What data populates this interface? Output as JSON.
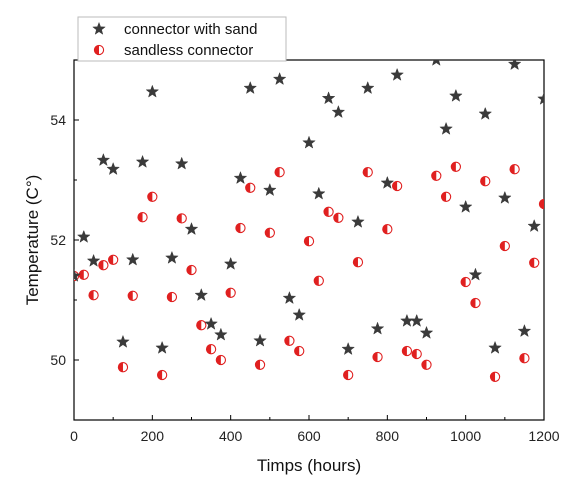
{
  "chart_data": {
    "type": "scatter",
    "title": "",
    "xlabel": "Timps (hours)",
    "ylabel": "Temperature (C°)",
    "xlim": [
      0,
      1200
    ],
    "ylim": [
      49,
      55
    ],
    "xticks": [
      "0",
      "200",
      "400",
      "600",
      "800",
      "1000",
      "1200"
    ],
    "yticks": [
      "50",
      "52",
      "54"
    ],
    "grid": false,
    "legend": "top-left, outside plot",
    "series": [
      {
        "name": "connector with sand",
        "marker": "star",
        "color": "#3a3a3a",
        "points": [
          [
            0,
            51.4
          ],
          [
            25,
            52.05
          ],
          [
            50,
            51.65
          ],
          [
            75,
            53.33
          ],
          [
            100,
            53.18
          ],
          [
            125,
            50.3
          ],
          [
            150,
            51.67
          ],
          [
            175,
            53.3
          ],
          [
            200,
            54.47
          ],
          [
            225,
            50.2
          ],
          [
            250,
            51.7
          ],
          [
            275,
            53.27
          ],
          [
            300,
            52.18
          ],
          [
            325,
            51.08
          ],
          [
            350,
            50.6
          ],
          [
            375,
            50.42
          ],
          [
            400,
            51.6
          ],
          [
            425,
            53.03
          ],
          [
            450,
            54.53
          ],
          [
            475,
            50.32
          ],
          [
            500,
            52.83
          ],
          [
            525,
            54.68
          ],
          [
            550,
            51.03
          ],
          [
            575,
            50.75
          ],
          [
            600,
            53.62
          ],
          [
            625,
            52.77
          ],
          [
            650,
            54.36
          ],
          [
            675,
            54.13
          ],
          [
            700,
            50.18
          ],
          [
            725,
            52.3
          ],
          [
            750,
            54.53
          ],
          [
            775,
            50.52
          ],
          [
            800,
            52.95
          ],
          [
            825,
            54.75
          ],
          [
            850,
            50.65
          ],
          [
            875,
            50.65
          ],
          [
            900,
            50.45
          ],
          [
            925,
            55.0
          ],
          [
            950,
            53.85
          ],
          [
            975,
            54.4
          ],
          [
            1000,
            52.55
          ],
          [
            1025,
            51.42
          ],
          [
            1050,
            54.1
          ],
          [
            1075,
            50.2
          ],
          [
            1100,
            52.7
          ],
          [
            1125,
            54.93
          ],
          [
            1150,
            50.48
          ],
          [
            1175,
            52.23
          ],
          [
            1200,
            54.35
          ]
        ]
      },
      {
        "name": "sandless connector",
        "marker": "half-filled circle",
        "color": "#e02020",
        "points": [
          [
            0,
            51.4
          ],
          [
            25,
            51.42
          ],
          [
            50,
            51.08
          ],
          [
            75,
            51.58
          ],
          [
            100,
            51.67
          ],
          [
            125,
            49.88
          ],
          [
            150,
            51.07
          ],
          [
            175,
            52.38
          ],
          [
            200,
            52.72
          ],
          [
            225,
            49.75
          ],
          [
            250,
            51.05
          ],
          [
            275,
            52.36
          ],
          [
            300,
            51.5
          ],
          [
            325,
            50.58
          ],
          [
            350,
            50.18
          ],
          [
            375,
            50.0
          ],
          [
            400,
            51.12
          ],
          [
            425,
            52.2
          ],
          [
            450,
            52.87
          ],
          [
            475,
            49.92
          ],
          [
            500,
            52.12
          ],
          [
            525,
            53.13
          ],
          [
            550,
            50.32
          ],
          [
            575,
            50.15
          ],
          [
            600,
            51.98
          ],
          [
            625,
            51.32
          ],
          [
            650,
            52.47
          ],
          [
            675,
            52.37
          ],
          [
            700,
            49.75
          ],
          [
            725,
            51.63
          ],
          [
            750,
            53.13
          ],
          [
            775,
            50.05
          ],
          [
            800,
            52.18
          ],
          [
            825,
            52.9
          ],
          [
            850,
            50.15
          ],
          [
            875,
            50.1
          ],
          [
            900,
            49.92
          ],
          [
            925,
            53.07
          ],
          [
            950,
            52.72
          ],
          [
            975,
            53.22
          ],
          [
            1000,
            51.3
          ],
          [
            1025,
            50.95
          ],
          [
            1050,
            52.98
          ],
          [
            1075,
            49.72
          ],
          [
            1100,
            51.9
          ],
          [
            1125,
            53.18
          ],
          [
            1150,
            50.03
          ],
          [
            1175,
            51.62
          ],
          [
            1200,
            52.6
          ]
        ]
      }
    ]
  }
}
